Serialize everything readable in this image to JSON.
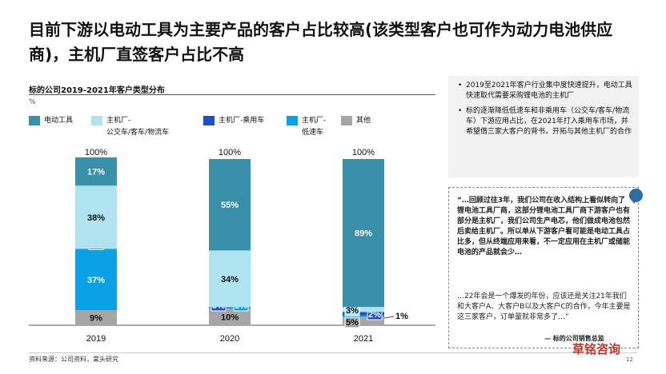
{
  "page": {
    "title": "目前下游以电动工具为主要产品的客户占比较高(该类型客户也可作为动力电池供应商)，主机厂直签客户占比不高",
    "source": "资料来源：公司资料，棠头研究",
    "page_number": "12",
    "watermark": "草铭咨询"
  },
  "chart_data": {
    "type": "bar",
    "stacked": true,
    "title": "标的公司2019-2021年客户类型分布",
    "unit": "%",
    "categories": [
      "2019",
      "2020",
      "2021"
    ],
    "totals": [
      "100%",
      "100%",
      "100%"
    ],
    "series": [
      {
        "name": "其他",
        "color": "#a6a6a6",
        "values": [
          9,
          10,
          5
        ],
        "labels": [
          "9%",
          "10%",
          "5%"
        ]
      },
      {
        "name": "主机厂-低速车",
        "color": "#0aa0e6",
        "values": [
          37,
          1,
          1
        ],
        "labels": [
          "37%",
          "1%",
          "1%"
        ]
      },
      {
        "name": "主机厂-乘用车",
        "color": "#1f4fc8",
        "values": [
          0,
          0,
          2
        ],
        "labels": [
          "0%",
          "0%",
          "2%"
        ]
      },
      {
        "name": "主机厂-公交车/客车/物流车",
        "color": "#aee3ef",
        "values": [
          38,
          34,
          3
        ],
        "labels": [
          "38%",
          "34%",
          "3%"
        ]
      },
      {
        "name": "电动工具",
        "color": "#3a8fa9",
        "values": [
          17,
          55,
          89
        ],
        "labels": [
          "17%",
          "55%",
          "89%"
        ]
      }
    ],
    "legend": [
      {
        "name": "电动工具",
        "label": "电动工具",
        "color": "#3a8fa9"
      },
      {
        "name": "主机厂-公交车/客车/物流车",
        "label": "主机厂-\n公交车/客车/物流车",
        "color": "#aee3ef"
      },
      {
        "name": "主机厂-乘用车",
        "label": "主机厂-乘用车",
        "color": "#1f4fc8"
      },
      {
        "name": "主机厂-低速车",
        "label": "主机厂-\n低速车",
        "color": "#0aa0e6"
      },
      {
        "name": "其他",
        "label": "其他",
        "color": "#a6a6a6"
      }
    ],
    "legend_position": "top",
    "ylim": [
      0,
      100
    ],
    "grid": false
  },
  "sidebar": {
    "bullets": [
      "2019至2021年客户行业集中度快速提升，电动工具快速取代需要采购锂电池的主机厂",
      "标的逐渐降低低速车和非乘用车（公交车/客车/物流车）下游应用占比，在2021年打入乘用车市场，并希望借三家大客户的背书，开拓与其他主机厂的合作"
    ],
    "quote_part1": "“…回顾过往3年，我们公司在收入结构上看似转向了锂电池工具厂商，这部分锂电池工具厂商下游客户也有部分是主机厂，我们公司生产电芯，他们做成电池包然后卖给主机厂。所以单从下游客户看可能是电动工具占比多，但从终端应用来看，不一定应用在主机厂或储能电池的产品就会少…",
    "quote_part2": "…22年会是一个爆发的年份，应该还是关注21年我们和大客户A、大客户B以及大客户C的合作，今年主要是这三家客户，订单量就非常多了…”",
    "quote_source": "— 标的公司销售总监"
  }
}
